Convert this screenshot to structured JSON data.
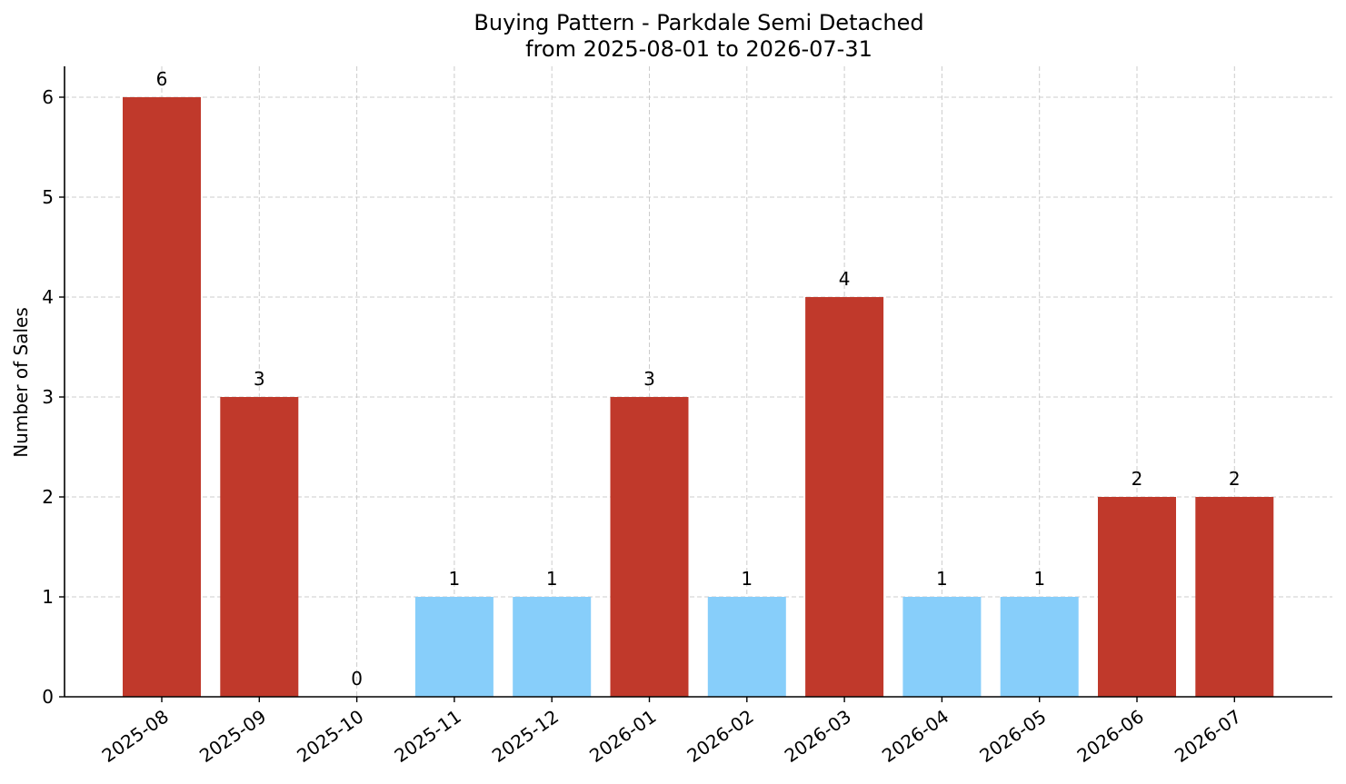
{
  "chart_data": {
    "type": "bar",
    "title": "Buying Pattern - Parkdale Semi Detached",
    "subtitle": "from 2025-08-01 to 2026-07-31",
    "xlabel": "",
    "ylabel": "Number of Sales",
    "categories": [
      "2025-08",
      "2025-09",
      "2025-10",
      "2025-11",
      "2025-12",
      "2026-01",
      "2026-02",
      "2026-03",
      "2026-04",
      "2026-05",
      "2026-06",
      "2026-07"
    ],
    "values": [
      6,
      3,
      0,
      1,
      1,
      3,
      1,
      4,
      1,
      1,
      2,
      2
    ],
    "bar_colors": [
      "#c0392b",
      "#c0392b",
      "#c0392b",
      "#87cefa",
      "#87cefa",
      "#c0392b",
      "#87cefa",
      "#c0392b",
      "#87cefa",
      "#87cefa",
      "#c0392b",
      "#c0392b"
    ],
    "yticks": [
      0,
      1,
      2,
      3,
      4,
      5,
      6
    ],
    "ylim": [
      0,
      6.3
    ],
    "grid": true,
    "legend": "none"
  }
}
